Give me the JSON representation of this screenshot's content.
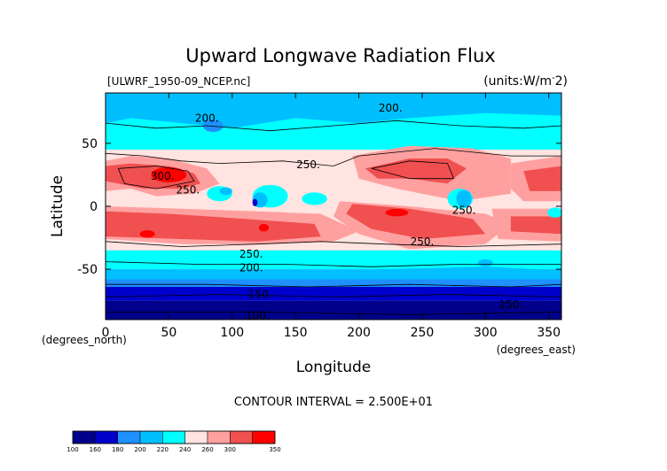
{
  "chart_data": {
    "type": "heatmap",
    "title": "Upward Longwave Radiation Flux",
    "subtitle_left": "[ULWRF_1950-09_NCEP.nc]",
    "units_label": "(units:W/m^2)",
    "xlabel": "Longitude",
    "ylabel": "Latitude",
    "x_unit_label": "(degrees_east)",
    "y_unit_label": "(degrees_north)",
    "xlim": [
      0,
      360
    ],
    "ylim": [
      -90,
      90
    ],
    "xticks": [
      0,
      50,
      100,
      150,
      200,
      250,
      300,
      350
    ],
    "yticks": [
      -50,
      0,
      50
    ],
    "contour_interval_text": "CONTOUR INTERVAL = 2.500E+01",
    "contour_labels": [
      {
        "text": "200.",
        "lon": 80,
        "lat": 70
      },
      {
        "text": "200.",
        "lon": 225,
        "lat": 78
      },
      {
        "text": "250.",
        "lon": 160,
        "lat": 33
      },
      {
        "text": "300.",
        "lon": 45,
        "lat": 24
      },
      {
        "text": "250.",
        "lon": 65,
        "lat": 13
      },
      {
        "text": "250.",
        "lon": 283,
        "lat": -3
      },
      {
        "text": "250.",
        "lon": 250,
        "lat": -28
      },
      {
        "text": "250.",
        "lon": 115,
        "lat": -38
      },
      {
        "text": "200.",
        "lon": 115,
        "lat": -49
      },
      {
        "text": "150.",
        "lon": 122,
        "lat": -70
      },
      {
        "text": "150.",
        "lon": 320,
        "lat": -78
      },
      {
        "text": "100.",
        "lon": 120,
        "lat": -87
      }
    ],
    "colorbar": {
      "boundaries": [
        "100",
        "160",
        "180",
        "200",
        "220",
        "240",
        "260",
        "300",
        "350"
      ],
      "colors": [
        "#00008b",
        "#0000cd",
        "#1e90ff",
        "#00bfff",
        "#00ffff",
        "#ffe4e1",
        "#ffa0a0",
        "#f05050",
        "#ff0000"
      ]
    },
    "regions_description": "low (<160) south of 60S, cyan mid-latitudes, red tropical/subtropical bands"
  }
}
